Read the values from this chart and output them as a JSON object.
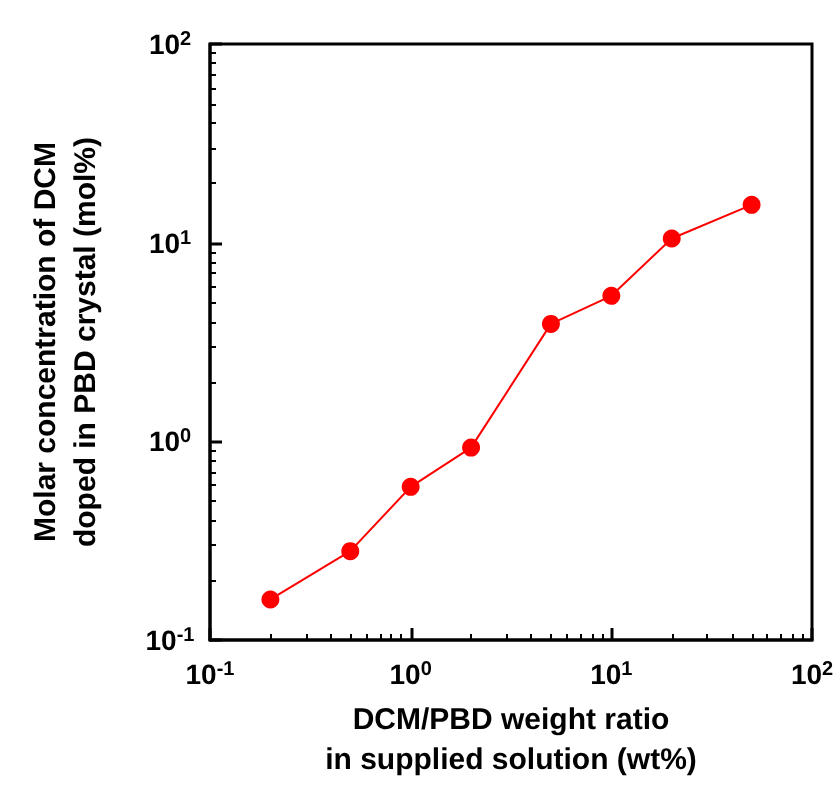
{
  "chart_data": {
    "type": "line",
    "xlabel": "DCM/PBD weight ratio\nin supplied solution (wt%)",
    "ylabel": "Molar concentration of DCM\ndoped in PBD crystal (mol%)",
    "x": [
      0.2,
      0.5,
      1,
      2,
      5,
      10,
      20,
      50
    ],
    "series": [
      {
        "color": "#ff0000",
        "values": [
          0.16,
          0.28,
          0.59,
          0.93,
          3.9,
          5.4,
          10.5,
          15.5
        ]
      }
    ],
    "log": "xy",
    "xlim": [
      0.1,
      100
    ],
    "ylim": [
      0.1,
      100
    ],
    "xticks": [
      {
        "value": 0.1,
        "label": "10$^{-1}$"
      },
      {
        "value": 1,
        "label": "10$^{0}$"
      },
      {
        "value": 10,
        "label": "10$^{1}$"
      },
      {
        "value": 100,
        "label": "10$^{2}$"
      }
    ],
    "yticks": [
      {
        "value": 0.1,
        "label": "10$^{-1}$"
      },
      {
        "value": 1,
        "label": "10$^{0}$"
      },
      {
        "value": 10,
        "label": "10$^{1}$"
      },
      {
        "value": 100,
        "label": "10$^{2}$"
      }
    ],
    "grid": false,
    "marker": "circle",
    "line_style": "solid"
  }
}
